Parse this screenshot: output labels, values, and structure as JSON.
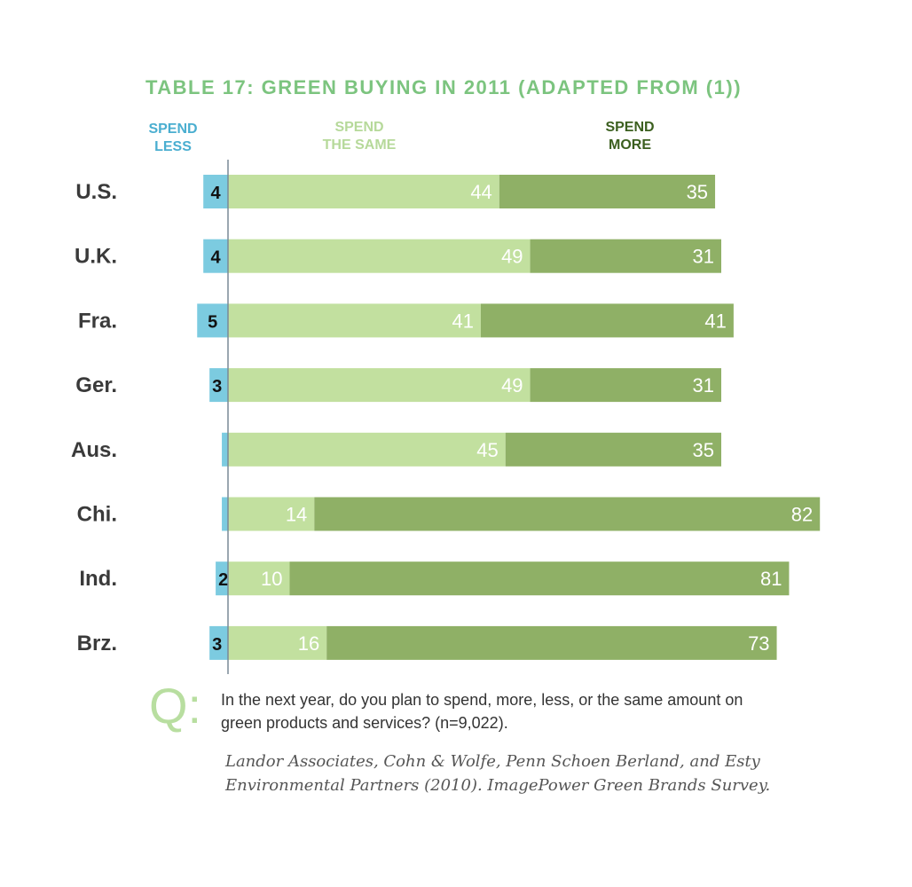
{
  "chart_data": {
    "type": "bar",
    "stacked": true,
    "orientation": "horizontal",
    "title": "TABLE 17: GREEN BUYING IN 2011 (ADAPTED FROM (1))",
    "categories": [
      "U.S.",
      "U.K.",
      "Fra.",
      "Ger.",
      "Aus.",
      "Chi.",
      "Ind.",
      "Brz."
    ],
    "series": [
      {
        "name": "SPEND LESS",
        "color": "#7ccbe0",
        "values": [
          4,
          4,
          5,
          3,
          1,
          1,
          2,
          3
        ]
      },
      {
        "name": "SPEND THE SAME",
        "color": "#c2e09f",
        "values": [
          44,
          49,
          41,
          49,
          45,
          14,
          10,
          16
        ]
      },
      {
        "name": "SPEND MORE",
        "color": "#8fb066",
        "values": [
          35,
          31,
          41,
          31,
          35,
          82,
          81,
          73
        ]
      }
    ],
    "legend": {
      "spend_less": "SPEND\nLESS",
      "spend_same": "SPEND\nTHE SAME",
      "spend_more": "SPEND\nMORE"
    }
  },
  "question": {
    "mark": "Q:",
    "text": "In the next year, do you plan to spend, more, less, or the same amount on green products and services? (n=9,022)."
  },
  "source": "Landor Associates, Cohn & Wolfe, Penn Schoen Berland, and Esty Environmental Partners (2010). ImagePower Green Brands Survey."
}
